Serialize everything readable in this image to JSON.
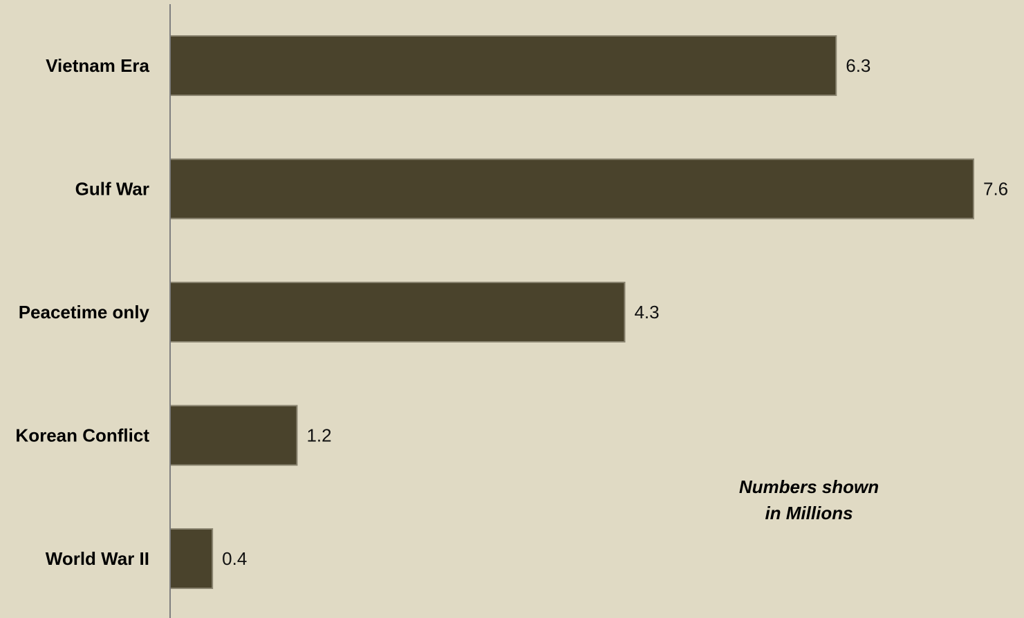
{
  "chart_data": {
    "type": "bar",
    "orientation": "horizontal",
    "categories": [
      "Vietnam Era",
      "Gulf War",
      "Peacetime only",
      "Korean Conflict",
      "World War II"
    ],
    "values": [
      6.3,
      7.6,
      4.3,
      1.2,
      0.4
    ],
    "value_labels": [
      "6.3",
      "7.6",
      "4.3",
      "1.2",
      "0.4"
    ],
    "title": "",
    "xlabel": "",
    "ylabel": "",
    "xlim": [
      0,
      7.6
    ],
    "grid": false,
    "legend": "none",
    "colors": {
      "bar": "#4a432c",
      "bar_edge": "#8a8470",
      "axis": "#7f7f7f",
      "background": "#e0dac4"
    }
  },
  "note": {
    "line1": "Numbers shown",
    "line2": "in Millions"
  }
}
